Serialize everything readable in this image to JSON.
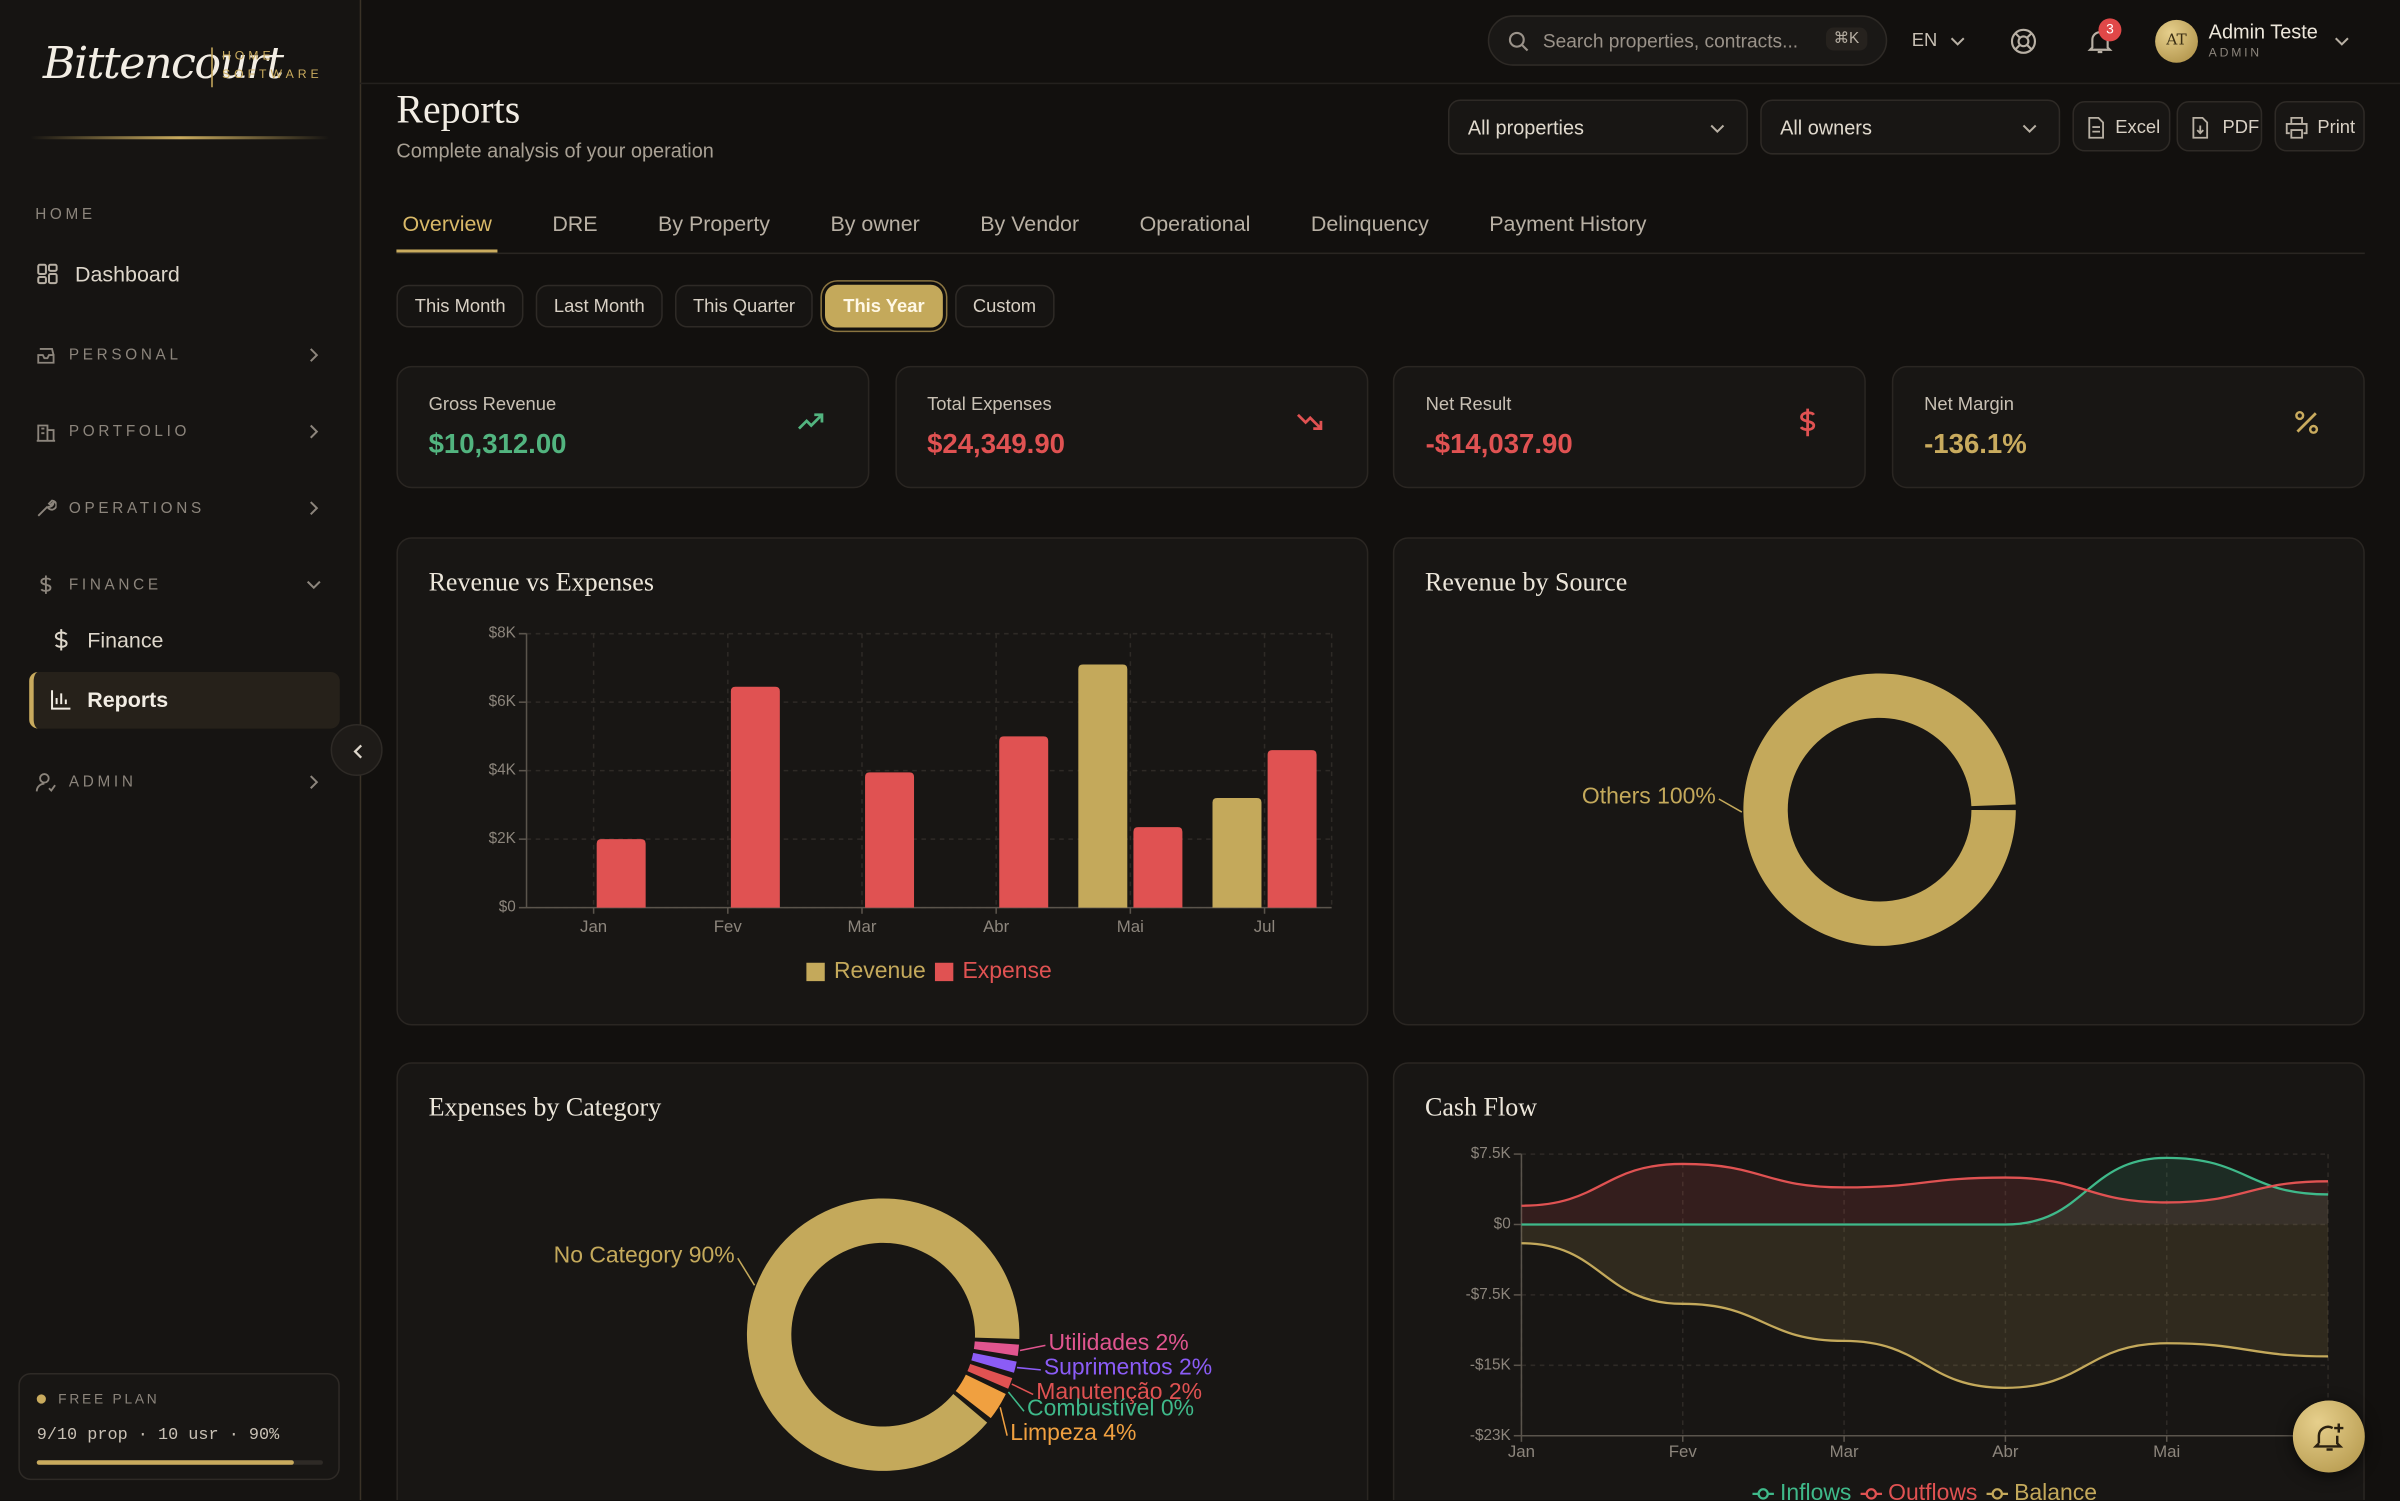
{
  "sidebar": {
    "logo": "Bittencourt",
    "logo_tag_1": "HOME",
    "logo_tag_2": "SOFTWARE",
    "nav": [
      "HOME",
      "Dashboard",
      "PERSONAL",
      "PORTFOLIO",
      "OPERATIONS",
      "FINANCE",
      "Finance",
      "Reports",
      "ADMIN"
    ]
  },
  "plan": {
    "label": "FREE PLAN",
    "usage": "9/10 prop · 10 usr · 90%",
    "percent": 90
  },
  "topbar": {
    "search": "Search properties, contracts...",
    "shortcut": "⌘K",
    "language": "EN",
    "notifications": 3,
    "avatar": "AT",
    "user": "Admin Teste",
    "role": "ADMIN"
  },
  "header": {
    "title": "Reports",
    "subtitle": "Complete analysis of your operation",
    "filters": [
      "All properties",
      "All owners"
    ],
    "exports": [
      "Excel",
      "PDF",
      "Print"
    ]
  },
  "tabs": {
    "items": [
      "Overview",
      "DRE",
      "By Property",
      "By owner",
      "By Vendor",
      "Operational",
      "Delinquency",
      "Payment History"
    ],
    "active": 0
  },
  "periods": {
    "items": [
      "This Month",
      "Last Month",
      "This Quarter",
      "This Year",
      "Custom"
    ],
    "active": 3
  },
  "kpis": [
    {
      "label": "Gross Revenue",
      "value": "$10,312.00",
      "color": "#52b47f"
    },
    {
      "label": "Total Expenses",
      "value": "$24,349.90",
      "color": "#e05252"
    },
    {
      "label": "Net Result",
      "value": "-$14,037.90",
      "color": "#e05252"
    },
    {
      "label": "Net Margin",
      "value": "-136.1%",
      "color": "#c9ab5e"
    }
  ],
  "chart_data": [
    {
      "type": "bar",
      "title": "Revenue vs Expenses",
      "categories": [
        "Jan",
        "Fev",
        "Mar",
        "Abr",
        "Mai",
        "Jul"
      ],
      "series": [
        {
          "name": "Revenue",
          "color": "#c4a95b",
          "values": [
            0,
            0,
            0,
            0,
            7100,
            3200
          ]
        },
        {
          "name": "Expense",
          "color": "#e05252",
          "values": [
            2000,
            6450,
            3950,
            5000,
            2350,
            4600
          ]
        }
      ],
      "ylim": [
        0,
        8000
      ],
      "yticks": [
        {
          "value": 0,
          "label": "$0"
        },
        {
          "value": 2000,
          "label": "$2K"
        },
        {
          "value": 4000,
          "label": "$4K"
        },
        {
          "value": 6000,
          "label": "$6K"
        },
        {
          "value": 8000,
          "label": "$8K"
        }
      ],
      "grid": true,
      "legend": "bottom"
    },
    {
      "type": "pie",
      "title": "Revenue by Source",
      "categories": [
        "Others"
      ],
      "values": [
        100
      ],
      "value_labels": [
        "Others 100%"
      ],
      "colors": [
        "#c4a95b"
      ],
      "donut": true
    },
    {
      "type": "pie",
      "title": "Expenses by Category",
      "categories": [
        "No Category",
        "Utilidades",
        "Suprimentos",
        "Manutenção",
        "Combustível",
        "Limpeza"
      ],
      "values": [
        90,
        2,
        2,
        2,
        0,
        4
      ],
      "value_labels": [
        "No Category 90%",
        "Utilidades 2%",
        "Suprimentos 2%",
        "Manutenção 2%",
        "Combustível 0%",
        "Limpeza 4%"
      ],
      "colors": [
        "#c4a95b",
        "#e0558f",
        "#8b5cf6",
        "#e05252",
        "#3fb98a",
        "#f0a040"
      ],
      "donut": true
    },
    {
      "type": "line",
      "title": "Cash Flow",
      "categories": [
        "Jan",
        "Fev",
        "Mar",
        "Abr",
        "Mai",
        null
      ],
      "series": [
        {
          "name": "Inflows",
          "color": "#3fb98a",
          "values": [
            0,
            0,
            0,
            0,
            7100,
            3200
          ]
        },
        {
          "name": "Outflows",
          "color": "#e05252",
          "values": [
            2000,
            6450,
            3950,
            5000,
            2350,
            4600
          ]
        },
        {
          "name": "Balance",
          "color": "#c4a95b",
          "values": [
            -2000,
            -8450,
            -12400,
            -17400,
            -12650,
            -14050
          ]
        }
      ],
      "ylim": [
        -22500,
        7500
      ],
      "yticks": [
        {
          "value": 7500,
          "label": "$7.5K"
        },
        {
          "value": 0,
          "label": "$0"
        },
        {
          "value": -7500,
          "label": "-$7.5K"
        },
        {
          "value": -15000,
          "label": "-$15K"
        },
        {
          "value": -22500,
          "label": "-$23K"
        }
      ],
      "grid": true,
      "area": true,
      "legend": "bottom"
    }
  ]
}
